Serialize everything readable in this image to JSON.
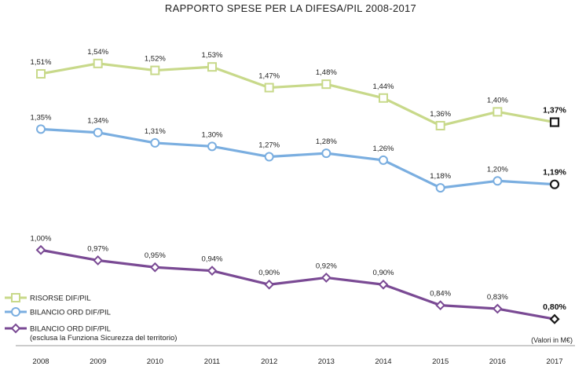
{
  "chart_data": {
    "type": "line",
    "title": "RAPPORTO SPESE PER LA DIFESA/PIL 2008-2017",
    "x": [
      "2008",
      "2009",
      "2010",
      "2011",
      "2012",
      "2013",
      "2014",
      "2015",
      "2016",
      "2017"
    ],
    "unit_note": "(Valori in M€)",
    "ylim": [
      0.78,
      1.56
    ],
    "grid": false,
    "legend_position": "bottom-left",
    "series": [
      {
        "name": "RISORSE DIF/PIL",
        "values": [
          1.51,
          1.54,
          1.52,
          1.53,
          1.47,
          1.48,
          1.44,
          1.36,
          1.4,
          1.37
        ],
        "labels": [
          "1,51%",
          "1,54%",
          "1,52%",
          "1,53%",
          "1,47%",
          "1,48%",
          "1,44%",
          "1,36%",
          "1,40%",
          "1,37%"
        ],
        "color": "#c8d98a",
        "marker": "square"
      },
      {
        "name": "BILANCIO ORD DIF/PIL",
        "values": [
          1.35,
          1.34,
          1.31,
          1.3,
          1.27,
          1.28,
          1.26,
          1.18,
          1.2,
          1.19
        ],
        "labels": [
          "1,35%",
          "1,34%",
          "1,31%",
          "1,30%",
          "1,27%",
          "1,28%",
          "1,26%",
          "1,18%",
          "1,20%",
          "1,19%"
        ],
        "color": "#7aaee0",
        "marker": "circle"
      },
      {
        "name": "BILANCIO ORD DIF/PIL",
        "name_line2": "(esclusa la Funziona Sicurezza del territorio)",
        "values": [
          1.0,
          0.97,
          0.95,
          0.94,
          0.9,
          0.92,
          0.9,
          0.84,
          0.83,
          0.8
        ],
        "labels": [
          "1,00%",
          "0,97%",
          "0,95%",
          "0,94%",
          "0,90%",
          "0,92%",
          "0,90%",
          "0,84%",
          "0,83%",
          "0,80%"
        ],
        "color": "#7a4a94",
        "marker": "diamond"
      }
    ]
  }
}
